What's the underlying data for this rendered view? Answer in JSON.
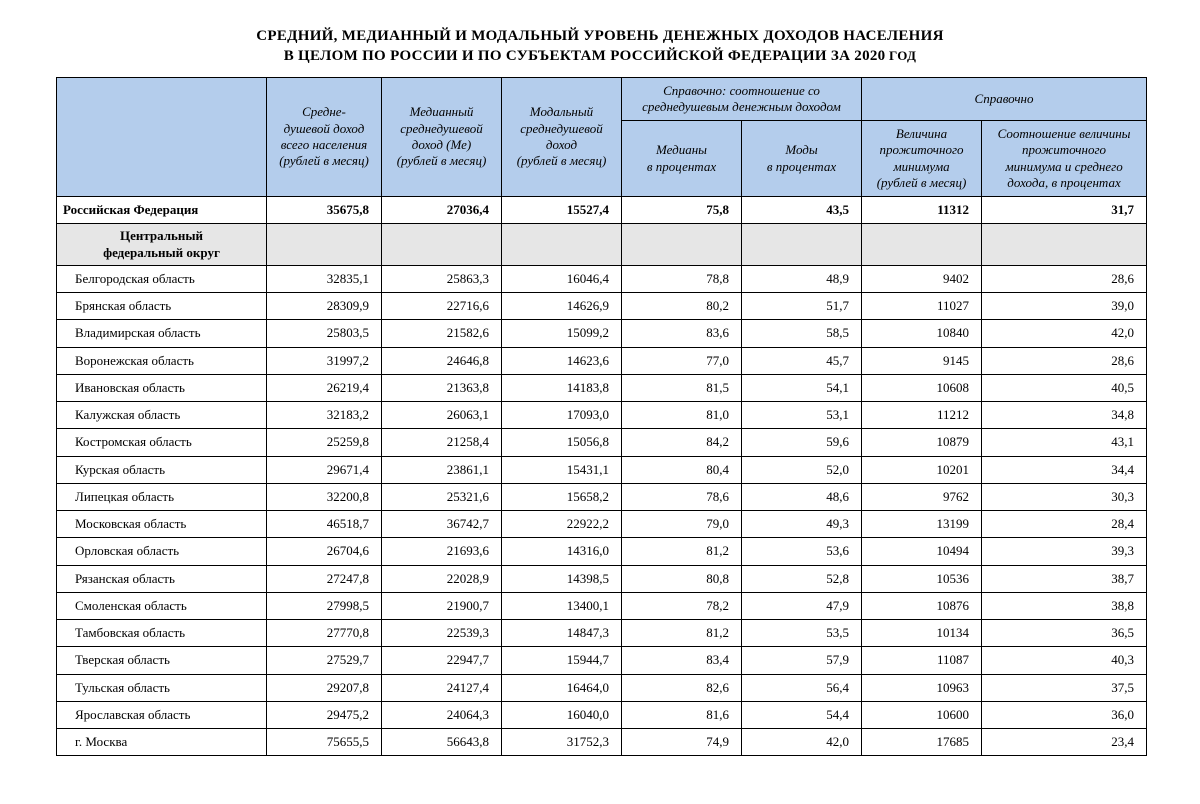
{
  "title_line1": "СРЕДНИЙ, МЕДИАННЫЙ И МОДАЛЬНЫЙ УРОВЕНЬ ДЕНЕЖНЫХ ДОХОДОВ НАСЕЛЕНИЯ",
  "title_line2_main": "В ЦЕЛОМ ПО РОССИИ И ПО СУБЪЕКТАМ РОССИЙСКОЙ ФЕДЕРАЦИИ ЗА 2020",
  "title_line2_suffix": " ГОД",
  "table": {
    "type": "table",
    "header_bg": "#b4cdec",
    "district_bg": "#e6e6e6",
    "border_color": "#000000",
    "text_color": "#000000",
    "columns_top": {
      "blank": "",
      "mean": "Средне-\nдушевой доход\nвсего населения\n(рублей в месяц)",
      "median": "Медианный\nсреднедушевой\nдоход (Ме)\n(рублей в месяц)",
      "mode": "Модальный\nсреднедушевой\nдоход\n(рублей в месяц)",
      "ratio_group": "Справочно: соотношение со\nсреднедушевым денежным доходом",
      "ref_group": "Справочно"
    },
    "columns_sub": {
      "ratio_median": "Медианы\nв процентах",
      "ratio_mode": "Моды\nв процентах",
      "min": "Величина\nпрожиточного\nминимума\n(рублей в месяц)",
      "ratio_min": "Соотношение величины\nпрожиточного\nминимума и среднего\nдохода, в процентах"
    },
    "total_row": {
      "name": "Российская Федерация",
      "mean": "35675,8",
      "median": "27036,4",
      "mode": "15527,4",
      "ratio_median": "75,8",
      "ratio_mode": "43,5",
      "min": "11312",
      "ratio_min": "31,7"
    },
    "district_row": {
      "name": "Центральный\nфедеральный округ"
    },
    "rows": [
      {
        "name": "Белгородская область",
        "mean": "32835,1",
        "median": "25863,3",
        "mode": "16046,4",
        "ratio_median": "78,8",
        "ratio_mode": "48,9",
        "min": "9402",
        "ratio_min": "28,6"
      },
      {
        "name": "Брянская область",
        "mean": "28309,9",
        "median": "22716,6",
        "mode": "14626,9",
        "ratio_median": "80,2",
        "ratio_mode": "51,7",
        "min": "11027",
        "ratio_min": "39,0"
      },
      {
        "name": "Владимирская область",
        "mean": "25803,5",
        "median": "21582,6",
        "mode": "15099,2",
        "ratio_median": "83,6",
        "ratio_mode": "58,5",
        "min": "10840",
        "ratio_min": "42,0"
      },
      {
        "name": "Воронежская область",
        "mean": "31997,2",
        "median": "24646,8",
        "mode": "14623,6",
        "ratio_median": "77,0",
        "ratio_mode": "45,7",
        "min": "9145",
        "ratio_min": "28,6"
      },
      {
        "name": "Ивановская область",
        "mean": "26219,4",
        "median": "21363,8",
        "mode": "14183,8",
        "ratio_median": "81,5",
        "ratio_mode": "54,1",
        "min": "10608",
        "ratio_min": "40,5"
      },
      {
        "name": "Калужская область",
        "mean": "32183,2",
        "median": "26063,1",
        "mode": "17093,0",
        "ratio_median": "81,0",
        "ratio_mode": "53,1",
        "min": "11212",
        "ratio_min": "34,8"
      },
      {
        "name": "Костромская область",
        "mean": "25259,8",
        "median": "21258,4",
        "mode": "15056,8",
        "ratio_median": "84,2",
        "ratio_mode": "59,6",
        "min": "10879",
        "ratio_min": "43,1"
      },
      {
        "name": "Курская область",
        "mean": "29671,4",
        "median": "23861,1",
        "mode": "15431,1",
        "ratio_median": "80,4",
        "ratio_mode": "52,0",
        "min": "10201",
        "ratio_min": "34,4"
      },
      {
        "name": "Липецкая область",
        "mean": "32200,8",
        "median": "25321,6",
        "mode": "15658,2",
        "ratio_median": "78,6",
        "ratio_mode": "48,6",
        "min": "9762",
        "ratio_min": "30,3"
      },
      {
        "name": "Московская область",
        "mean": "46518,7",
        "median": "36742,7",
        "mode": "22922,2",
        "ratio_median": "79,0",
        "ratio_mode": "49,3",
        "min": "13199",
        "ratio_min": "28,4"
      },
      {
        "name": "Орловская область",
        "mean": "26704,6",
        "median": "21693,6",
        "mode": "14316,0",
        "ratio_median": "81,2",
        "ratio_mode": "53,6",
        "min": "10494",
        "ratio_min": "39,3"
      },
      {
        "name": "Рязанская область",
        "mean": "27247,8",
        "median": "22028,9",
        "mode": "14398,5",
        "ratio_median": "80,8",
        "ratio_mode": "52,8",
        "min": "10536",
        "ratio_min": "38,7"
      },
      {
        "name": "Смоленская область",
        "mean": "27998,5",
        "median": "21900,7",
        "mode": "13400,1",
        "ratio_median": "78,2",
        "ratio_mode": "47,9",
        "min": "10876",
        "ratio_min": "38,8"
      },
      {
        "name": "Тамбовская область",
        "mean": "27770,8",
        "median": "22539,3",
        "mode": "14847,3",
        "ratio_median": "81,2",
        "ratio_mode": "53,5",
        "min": "10134",
        "ratio_min": "36,5"
      },
      {
        "name": "Тверская область",
        "mean": "27529,7",
        "median": "22947,7",
        "mode": "15944,7",
        "ratio_median": "83,4",
        "ratio_mode": "57,9",
        "min": "11087",
        "ratio_min": "40,3"
      },
      {
        "name": "Тульская область",
        "mean": "29207,8",
        "median": "24127,4",
        "mode": "16464,0",
        "ratio_median": "82,6",
        "ratio_mode": "56,4",
        "min": "10963",
        "ratio_min": "37,5"
      },
      {
        "name": "Ярославская область",
        "mean": "29475,2",
        "median": "24064,3",
        "mode": "16040,0",
        "ratio_median": "81,6",
        "ratio_mode": "54,4",
        "min": "10600",
        "ratio_min": "36,0"
      },
      {
        "name": "г. Москва",
        "mean": "75655,5",
        "median": "56643,8",
        "mode": "31752,3",
        "ratio_median": "74,9",
        "ratio_mode": "42,0",
        "min": "17685",
        "ratio_min": "23,4"
      }
    ]
  }
}
